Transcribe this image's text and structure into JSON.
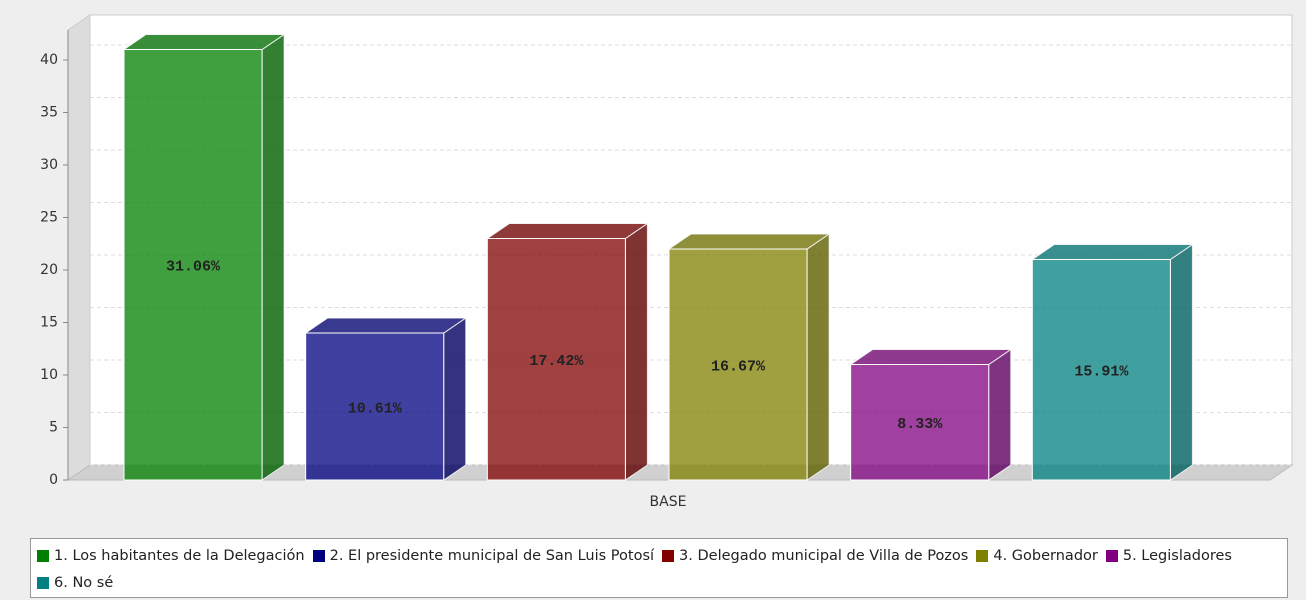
{
  "chart_data": {
    "type": "bar3d",
    "categories": [
      "BASE"
    ],
    "series": [
      {
        "name": "1. Los habitantes de la Delegación",
        "color": "#008000",
        "values": [
          41
        ],
        "label": "31.06%"
      },
      {
        "name": "2. El presidente municipal de San Luis Potosí",
        "color": "#000080",
        "values": [
          14
        ],
        "label": "10.61%"
      },
      {
        "name": "3. Delegado municipal de Villa de Pozos",
        "color": "#800000",
        "values": [
          23
        ],
        "label": "17.42%"
      },
      {
        "name": "4. Gobernador",
        "color": "#808000",
        "values": [
          22
        ],
        "label": "16.67%"
      },
      {
        "name": "5. Legisladores",
        "color": "#800080",
        "values": [
          11
        ],
        "label": "8.33%"
      },
      {
        "name": "6. No sé",
        "color": "#008080",
        "values": [
          21
        ],
        "label": "15.91%"
      }
    ],
    "ylim": [
      0,
      40
    ],
    "yticks": [
      0,
      5,
      10,
      15,
      20,
      25,
      30,
      35,
      40
    ],
    "grid": true
  }
}
